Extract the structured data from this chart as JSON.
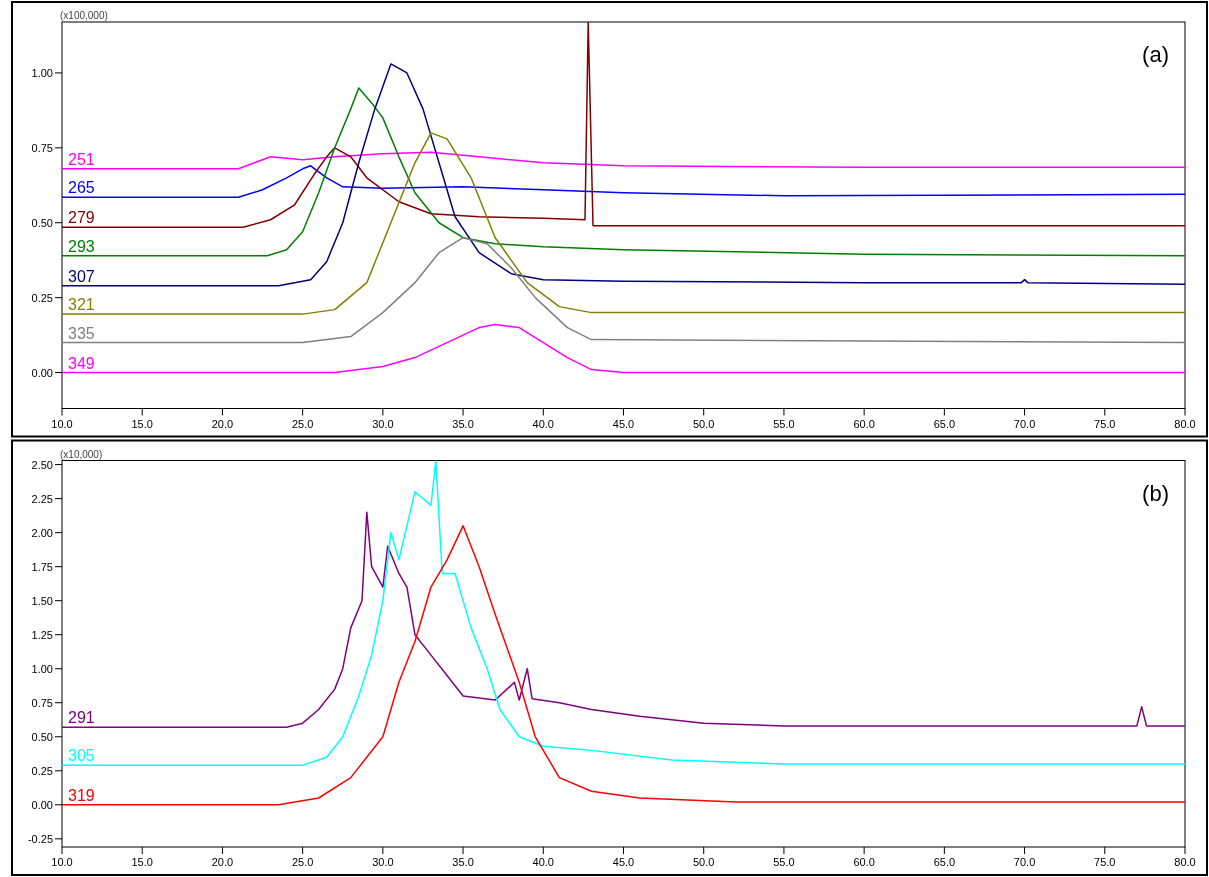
{
  "chart_data": [
    {
      "type": "line",
      "title": "(a)",
      "annotations": [
        "(x100,000)"
      ],
      "xlim": [
        10,
        80
      ],
      "ylim": [
        -0.12,
        1.17
      ],
      "xticks": [
        {
          "value": 10,
          "label": "10.0"
        },
        {
          "value": 15,
          "label": "15.0"
        },
        {
          "value": 20,
          "label": "20.0"
        },
        {
          "value": 25,
          "label": "25.0"
        },
        {
          "value": 30,
          "label": "30.0"
        },
        {
          "value": 35,
          "label": "35.0"
        },
        {
          "value": 40,
          "label": "40.0"
        },
        {
          "value": 45,
          "label": "45.0"
        },
        {
          "value": 50,
          "label": "50.0"
        },
        {
          "value": 55,
          "label": "55.0"
        },
        {
          "value": 60,
          "label": "60.0"
        },
        {
          "value": 65,
          "label": "65.0"
        },
        {
          "value": 70,
          "label": "70.0"
        },
        {
          "value": 75,
          "label": "75.0"
        },
        {
          "value": 80,
          "label": "80.0"
        }
      ],
      "yticks": [
        {
          "value": 0,
          "label": "0.00"
        },
        {
          "value": 0.25,
          "label": "0.25"
        },
        {
          "value": 0.5,
          "label": "0.50"
        },
        {
          "value": 0.75,
          "label": "0.75"
        },
        {
          "value": 1,
          "label": "1.00"
        }
      ],
      "series": [
        {
          "name": "251",
          "color": "#ff00ff",
          "x": [
            10,
            21,
            22,
            23,
            25,
            27,
            30,
            33,
            36,
            40,
            45,
            60,
            80
          ],
          "values": [
            0.68,
            0.68,
            0.7,
            0.72,
            0.71,
            0.72,
            0.73,
            0.735,
            0.72,
            0.7,
            0.69,
            0.685,
            0.685
          ]
        },
        {
          "name": "265",
          "color": "#0000ff",
          "x": [
            10,
            21,
            22.5,
            24,
            25,
            25.5,
            26.5,
            27.5,
            30,
            35,
            40,
            45,
            55,
            80
          ],
          "values": [
            0.585,
            0.585,
            0.61,
            0.65,
            0.68,
            0.69,
            0.65,
            0.62,
            0.615,
            0.62,
            0.61,
            0.6,
            0.59,
            0.595
          ]
        },
        {
          "name": "279",
          "color": "#800000",
          "x": [
            10,
            21.3,
            23,
            24.5,
            25.7,
            26.5,
            27,
            28,
            29,
            31,
            33,
            36,
            40,
            42.6,
            42.8,
            43.1,
            80
          ],
          "values": [
            0.485,
            0.485,
            0.51,
            0.56,
            0.66,
            0.72,
            0.75,
            0.72,
            0.65,
            0.57,
            0.53,
            0.52,
            0.515,
            0.51,
            1.17,
            0.49,
            0.49
          ]
        },
        {
          "name": "293",
          "color": "#008000",
          "x": [
            10,
            22.8,
            24,
            25,
            26,
            27,
            28,
            28.5,
            29.3,
            30,
            31,
            32,
            33.5,
            35,
            37,
            40,
            45,
            60,
            80
          ],
          "values": [
            0.39,
            0.39,
            0.41,
            0.47,
            0.6,
            0.75,
            0.88,
            0.95,
            0.9,
            0.85,
            0.72,
            0.6,
            0.5,
            0.45,
            0.43,
            0.42,
            0.41,
            0.395,
            0.39
          ]
        },
        {
          "name": "307",
          "color": "#000080",
          "x": [
            10,
            23.5,
            25.5,
            26.5,
            27.5,
            28.5,
            29.5,
            30.5,
            31.5,
            32.5,
            33.5,
            34.5,
            36,
            38,
            40,
            45,
            60,
            69.8,
            70,
            70.2,
            80
          ],
          "values": [
            0.29,
            0.29,
            0.31,
            0.37,
            0.5,
            0.7,
            0.88,
            1.03,
            1,
            0.88,
            0.7,
            0.52,
            0.4,
            0.33,
            0.31,
            0.305,
            0.3,
            0.3,
            0.31,
            0.3,
            0.295
          ]
        },
        {
          "name": "321",
          "color": "#808000",
          "x": [
            10,
            25,
            27,
            29,
            30.5,
            32,
            33,
            34,
            35.5,
            37,
            39,
            41,
            43,
            80
          ],
          "values": [
            0.195,
            0.195,
            0.21,
            0.3,
            0.5,
            0.7,
            0.8,
            0.78,
            0.65,
            0.45,
            0.3,
            0.22,
            0.2,
            0.2
          ]
        },
        {
          "name": "335",
          "color": "#808080",
          "x": [
            10,
            25,
            28,
            30,
            32,
            33.5,
            35,
            36.5,
            38,
            39.5,
            41.5,
            43,
            80
          ],
          "values": [
            0.1,
            0.1,
            0.12,
            0.2,
            0.3,
            0.4,
            0.45,
            0.43,
            0.35,
            0.25,
            0.15,
            0.11,
            0.1
          ]
        },
        {
          "name": "349",
          "color": "#ff00ff",
          "x": [
            10,
            27,
            30,
            32,
            34,
            36,
            37,
            38.5,
            40,
            41.5,
            43,
            45,
            80
          ],
          "values": [
            0,
            0,
            0.02,
            0.05,
            0.1,
            0.15,
            0.16,
            0.15,
            0.1,
            0.05,
            0.01,
            0,
            0
          ]
        }
      ]
    },
    {
      "type": "line",
      "title": "(b)",
      "annotations": [
        "(x10,000)"
      ],
      "xlim": [
        10,
        80
      ],
      "ylim": [
        -0.31,
        2.53
      ],
      "xticks": [
        {
          "value": 10,
          "label": "10.0"
        },
        {
          "value": 15,
          "label": "15.0"
        },
        {
          "value": 20,
          "label": "20.0"
        },
        {
          "value": 25,
          "label": "25.0"
        },
        {
          "value": 30,
          "label": "30.0"
        },
        {
          "value": 35,
          "label": "35.0"
        },
        {
          "value": 40,
          "label": "40.0"
        },
        {
          "value": 45,
          "label": "45.0"
        },
        {
          "value": 50,
          "label": "50.0"
        },
        {
          "value": 55,
          "label": "55.0"
        },
        {
          "value": 60,
          "label": "60.0"
        },
        {
          "value": 65,
          "label": "65.0"
        },
        {
          "value": 70,
          "label": "70.0"
        },
        {
          "value": 75,
          "label": "75.0"
        },
        {
          "value": 80,
          "label": "80.0"
        }
      ],
      "yticks": [
        {
          "value": -0.25,
          "label": "-0.25"
        },
        {
          "value": 0,
          "label": "0.00"
        },
        {
          "value": 0.25,
          "label": "0.25"
        },
        {
          "value": 0.5,
          "label": "0.50"
        },
        {
          "value": 0.75,
          "label": "0.75"
        },
        {
          "value": 1,
          "label": "1.00"
        },
        {
          "value": 1.25,
          "label": "1.25"
        },
        {
          "value": 1.5,
          "label": "1.50"
        },
        {
          "value": 1.75,
          "label": "1.75"
        },
        {
          "value": 2,
          "label": "2.00"
        },
        {
          "value": 2.25,
          "label": "2.25"
        },
        {
          "value": 2.5,
          "label": "2.50"
        }
      ],
      "series": [
        {
          "name": "291",
          "color": "#800080",
          "x": [
            10,
            24,
            25,
            26,
            27,
            27.5,
            28,
            28.7,
            29,
            29.3,
            30,
            30.3,
            31,
            31.5,
            32,
            33,
            34,
            35,
            37,
            38.2,
            38.5,
            39,
            39.3,
            41,
            43,
            46,
            50,
            55,
            77,
            77.3,
            77.6,
            80
          ],
          "values": [
            0.57,
            0.57,
            0.6,
            0.7,
            0.85,
            1,
            1.3,
            1.5,
            2.15,
            1.75,
            1.6,
            1.9,
            1.7,
            1.6,
            1.25,
            1.1,
            0.95,
            0.8,
            0.77,
            0.9,
            0.77,
            1,
            0.78,
            0.75,
            0.7,
            0.65,
            0.6,
            0.58,
            0.58,
            0.72,
            0.58,
            0.58
          ]
        },
        {
          "name": "305",
          "color": "#00ffff",
          "x": [
            10,
            25,
            26.5,
            27.5,
            28.5,
            29.3,
            30,
            30.5,
            31,
            32,
            33,
            33.3,
            33.7,
            34.5,
            35.5,
            36.5,
            37.3,
            38.5,
            40,
            43,
            48,
            55,
            80
          ],
          "values": [
            0.29,
            0.29,
            0.35,
            0.5,
            0.8,
            1.1,
            1.5,
            2,
            1.8,
            2.3,
            2.2,
            2.53,
            1.7,
            1.7,
            1.3,
            1,
            0.7,
            0.5,
            0.43,
            0.4,
            0.33,
            0.3,
            0.3
          ]
        },
        {
          "name": "319",
          "color": "#ff0000",
          "x": [
            10,
            23.5,
            26,
            28,
            30,
            31,
            32,
            33,
            34,
            35,
            36,
            37,
            38.5,
            39.5,
            41,
            43,
            46,
            52,
            80
          ],
          "values": [
            0,
            0,
            0.05,
            0.2,
            0.5,
            0.9,
            1.2,
            1.6,
            1.8,
            2.05,
            1.75,
            1.4,
            0.9,
            0.5,
            0.2,
            0.1,
            0.05,
            0.02,
            0.02
          ]
        }
      ]
    }
  ]
}
